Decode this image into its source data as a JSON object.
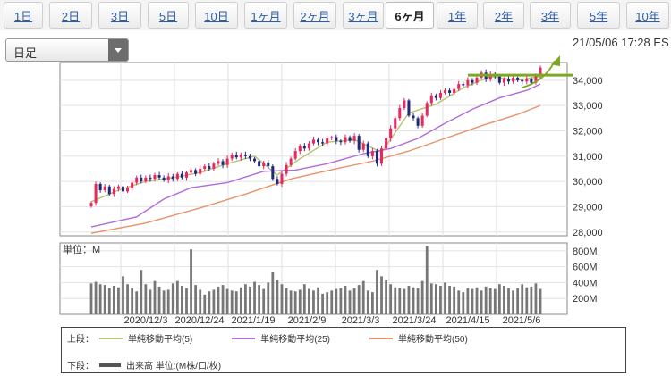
{
  "tabs": [
    {
      "label": "1日",
      "active": false
    },
    {
      "label": "2日",
      "active": false
    },
    {
      "label": "3日",
      "active": false
    },
    {
      "label": "5日",
      "active": false
    },
    {
      "label": "10日",
      "active": false
    },
    {
      "label": "1ヶ月",
      "active": false
    },
    {
      "label": "2ヶ月",
      "active": false
    },
    {
      "label": "3ヶ月",
      "active": false
    },
    {
      "label": "6ヶ月",
      "active": true
    },
    {
      "label": "1年",
      "active": false
    },
    {
      "label": "2年",
      "active": false
    },
    {
      "label": "3年",
      "active": false
    },
    {
      "label": "5年",
      "active": false
    },
    {
      "label": "10年",
      "active": false
    }
  ],
  "period_select": {
    "value": "日足"
  },
  "timestamp": "21/05/06 17:28 ES",
  "chart_data": [
    {
      "type": "candlestick",
      "price_axis": {
        "ticks": [
          "34,000",
          "33,000",
          "32,000",
          "31,000",
          "30,000",
          "29,000",
          "28,000"
        ],
        "values": [
          34000,
          33000,
          32000,
          31000,
          30000,
          29000,
          28000
        ],
        "range": [
          27850,
          34700
        ]
      },
      "x_ticks": [
        "2020/12/3",
        "2020/12/24",
        "2021/1/19",
        "2021/2/9",
        "2021/3/3",
        "2021/3/24",
        "2021/4/15",
        "2021/5/6"
      ],
      "candles": [
        [
          29020,
          29150
        ],
        [
          29150,
          29900
        ],
        [
          29900,
          29650
        ],
        [
          29650,
          29800
        ],
        [
          29800,
          29500
        ],
        [
          29500,
          29700
        ],
        [
          29700,
          29800
        ],
        [
          29800,
          29600
        ],
        [
          29600,
          29750
        ],
        [
          29750,
          29950
        ],
        [
          29950,
          30150
        ],
        [
          30150,
          30000
        ],
        [
          30000,
          30150
        ],
        [
          30150,
          30100
        ],
        [
          30100,
          30250
        ],
        [
          30250,
          30150
        ],
        [
          30150,
          30050
        ],
        [
          30050,
          30200
        ],
        [
          30200,
          30100
        ],
        [
          30100,
          30300
        ],
        [
          30300,
          30150
        ],
        [
          30150,
          30350
        ],
        [
          30350,
          30450
        ],
        [
          30450,
          30300
        ],
        [
          30300,
          30500
        ],
        [
          30500,
          30600
        ],
        [
          30600,
          30500
        ],
        [
          30500,
          30700
        ],
        [
          30700,
          30800
        ],
        [
          30800,
          30650
        ],
        [
          30650,
          30900
        ],
        [
          30900,
          31050
        ],
        [
          31050,
          30950
        ],
        [
          30950,
          31050
        ],
        [
          31050,
          31000
        ],
        [
          31000,
          30900
        ],
        [
          30900,
          30800
        ],
        [
          30800,
          30600
        ],
        [
          30600,
          30750
        ],
        [
          30750,
          30600
        ],
        [
          30600,
          30100
        ],
        [
          30100,
          29900
        ],
        [
          29900,
          30300
        ],
        [
          30300,
          30650
        ],
        [
          30650,
          30900
        ],
        [
          30900,
          31200
        ],
        [
          31200,
          31400
        ],
        [
          31400,
          31300
        ],
        [
          31300,
          31500
        ],
        [
          31500,
          31650
        ],
        [
          31650,
          31550
        ],
        [
          31550,
          31500
        ],
        [
          31500,
          31700
        ],
        [
          31700,
          31750
        ],
        [
          31750,
          31600
        ],
        [
          31600,
          31550
        ],
        [
          31550,
          31750
        ],
        [
          31750,
          31600
        ],
        [
          31600,
          31800
        ],
        [
          31800,
          31250
        ],
        [
          31250,
          31500
        ],
        [
          31500,
          31000
        ],
        [
          31000,
          31200
        ],
        [
          31200,
          30700
        ],
        [
          30700,
          31300
        ],
        [
          31300,
          31700
        ],
        [
          31700,
          32100
        ],
        [
          32100,
          32500
        ],
        [
          32500,
          32900
        ],
        [
          32900,
          33200
        ],
        [
          33200,
          32600
        ],
        [
          32600,
          32500
        ],
        [
          32500,
          32200
        ],
        [
          32200,
          32600
        ],
        [
          32600,
          33100
        ],
        [
          33100,
          33400
        ],
        [
          33400,
          33300
        ],
        [
          33300,
          33500
        ],
        [
          33500,
          33600
        ],
        [
          33600,
          33500
        ],
        [
          33500,
          33650
        ],
        [
          33650,
          33850
        ],
        [
          33850,
          33800
        ],
        [
          33800,
          34000
        ],
        [
          34000,
          33900
        ],
        [
          33900,
          34100
        ],
        [
          34100,
          34300
        ],
        [
          34300,
          34050
        ],
        [
          34050,
          34250
        ],
        [
          34250,
          34150
        ],
        [
          34150,
          33900
        ],
        [
          33900,
          34050
        ],
        [
          34050,
          33950
        ],
        [
          33950,
          34100
        ],
        [
          34100,
          34000
        ],
        [
          34000,
          33950
        ],
        [
          33950,
          34050
        ],
        [
          34050,
          33900
        ],
        [
          33900,
          34150
        ],
        [
          34150,
          34500
        ]
      ],
      "moving_averages": [
        {
          "name": "単純移動平均(5)",
          "color": "#b5c470",
          "points": [
            [
              0,
              29200
            ],
            [
              6,
              29650
            ],
            [
              12,
              30000
            ],
            [
              18,
              30150
            ],
            [
              24,
              30350
            ],
            [
              30,
              30700
            ],
            [
              36,
              31000
            ],
            [
              41,
              30250
            ],
            [
              46,
              30900
            ],
            [
              52,
              31550
            ],
            [
              58,
              31650
            ],
            [
              64,
              31150
            ],
            [
              70,
              32700
            ],
            [
              76,
              33050
            ],
            [
              82,
              33700
            ],
            [
              88,
              34150
            ],
            [
              94,
              34000
            ],
            [
              99,
              34150
            ]
          ]
        },
        {
          "name": "単純移動平均(25)",
          "color": "#b06cd8",
          "points": [
            [
              0,
              28200
            ],
            [
              10,
              28600
            ],
            [
              16,
              29300
            ],
            [
              22,
              29750
            ],
            [
              30,
              29950
            ],
            [
              38,
              30400
            ],
            [
              45,
              30450
            ],
            [
              52,
              30700
            ],
            [
              60,
              31100
            ],
            [
              66,
              31300
            ],
            [
              72,
              31700
            ],
            [
              78,
              32300
            ],
            [
              84,
              32850
            ],
            [
              90,
              33300
            ],
            [
              96,
              33600
            ],
            [
              99,
              33850
            ]
          ]
        },
        {
          "name": "単純移動平均(50)",
          "color": "#e8926a",
          "points": [
            [
              0,
              27950
            ],
            [
              12,
              28350
            ],
            [
              24,
              28950
            ],
            [
              34,
              29500
            ],
            [
              44,
              30100
            ],
            [
              54,
              30500
            ],
            [
              62,
              30800
            ],
            [
              70,
              31200
            ],
            [
              78,
              31700
            ],
            [
              86,
              32200
            ],
            [
              94,
              32650
            ],
            [
              99,
              33000
            ]
          ]
        }
      ],
      "resistance_color": "#7da825",
      "arrow_color": "#7da825"
    },
    {
      "type": "bar",
      "unit_label": "単位：M",
      "volume_axis": {
        "ticks": [
          "800M",
          "600M",
          "400M",
          "200M"
        ],
        "values": [
          800,
          600,
          400,
          200
        ],
        "range": [
          0,
          900
        ]
      },
      "volumes": [
        390,
        410,
        380,
        370,
        330,
        360,
        340,
        480,
        380,
        330,
        290,
        560,
        380,
        310,
        420,
        350,
        300,
        310,
        390,
        420,
        360,
        330,
        820,
        370,
        310,
        250,
        290,
        310,
        350,
        370,
        320,
        300,
        290,
        340,
        380,
        350,
        410,
        370,
        320,
        400,
        540,
        430,
        380,
        330,
        300,
        290,
        310,
        380,
        320,
        300,
        340,
        260,
        280,
        300,
        320,
        330,
        360,
        300,
        330,
        370,
        420,
        300,
        280,
        560,
        480,
        430,
        380,
        340,
        330,
        320,
        360,
        340,
        330,
        420,
        860,
        390,
        380,
        360,
        400,
        360,
        350,
        300,
        280,
        330,
        320,
        340,
        300,
        350,
        330,
        320,
        380,
        360,
        330,
        300,
        330,
        380,
        340,
        350,
        390,
        320
      ],
      "color": "#777777"
    }
  ],
  "legend": {
    "top_label": "上段：",
    "bottom_label": "下段：",
    "items": [
      {
        "label": "単純移動平均(5)",
        "color": "#b5c470"
      },
      {
        "label": "単純移動平均(25)",
        "color": "#b06cd8"
      },
      {
        "label": "単純移動平均(50)",
        "color": "#e8926a"
      }
    ],
    "volume_label": "出来高 単位:(M株/口/枚)"
  }
}
